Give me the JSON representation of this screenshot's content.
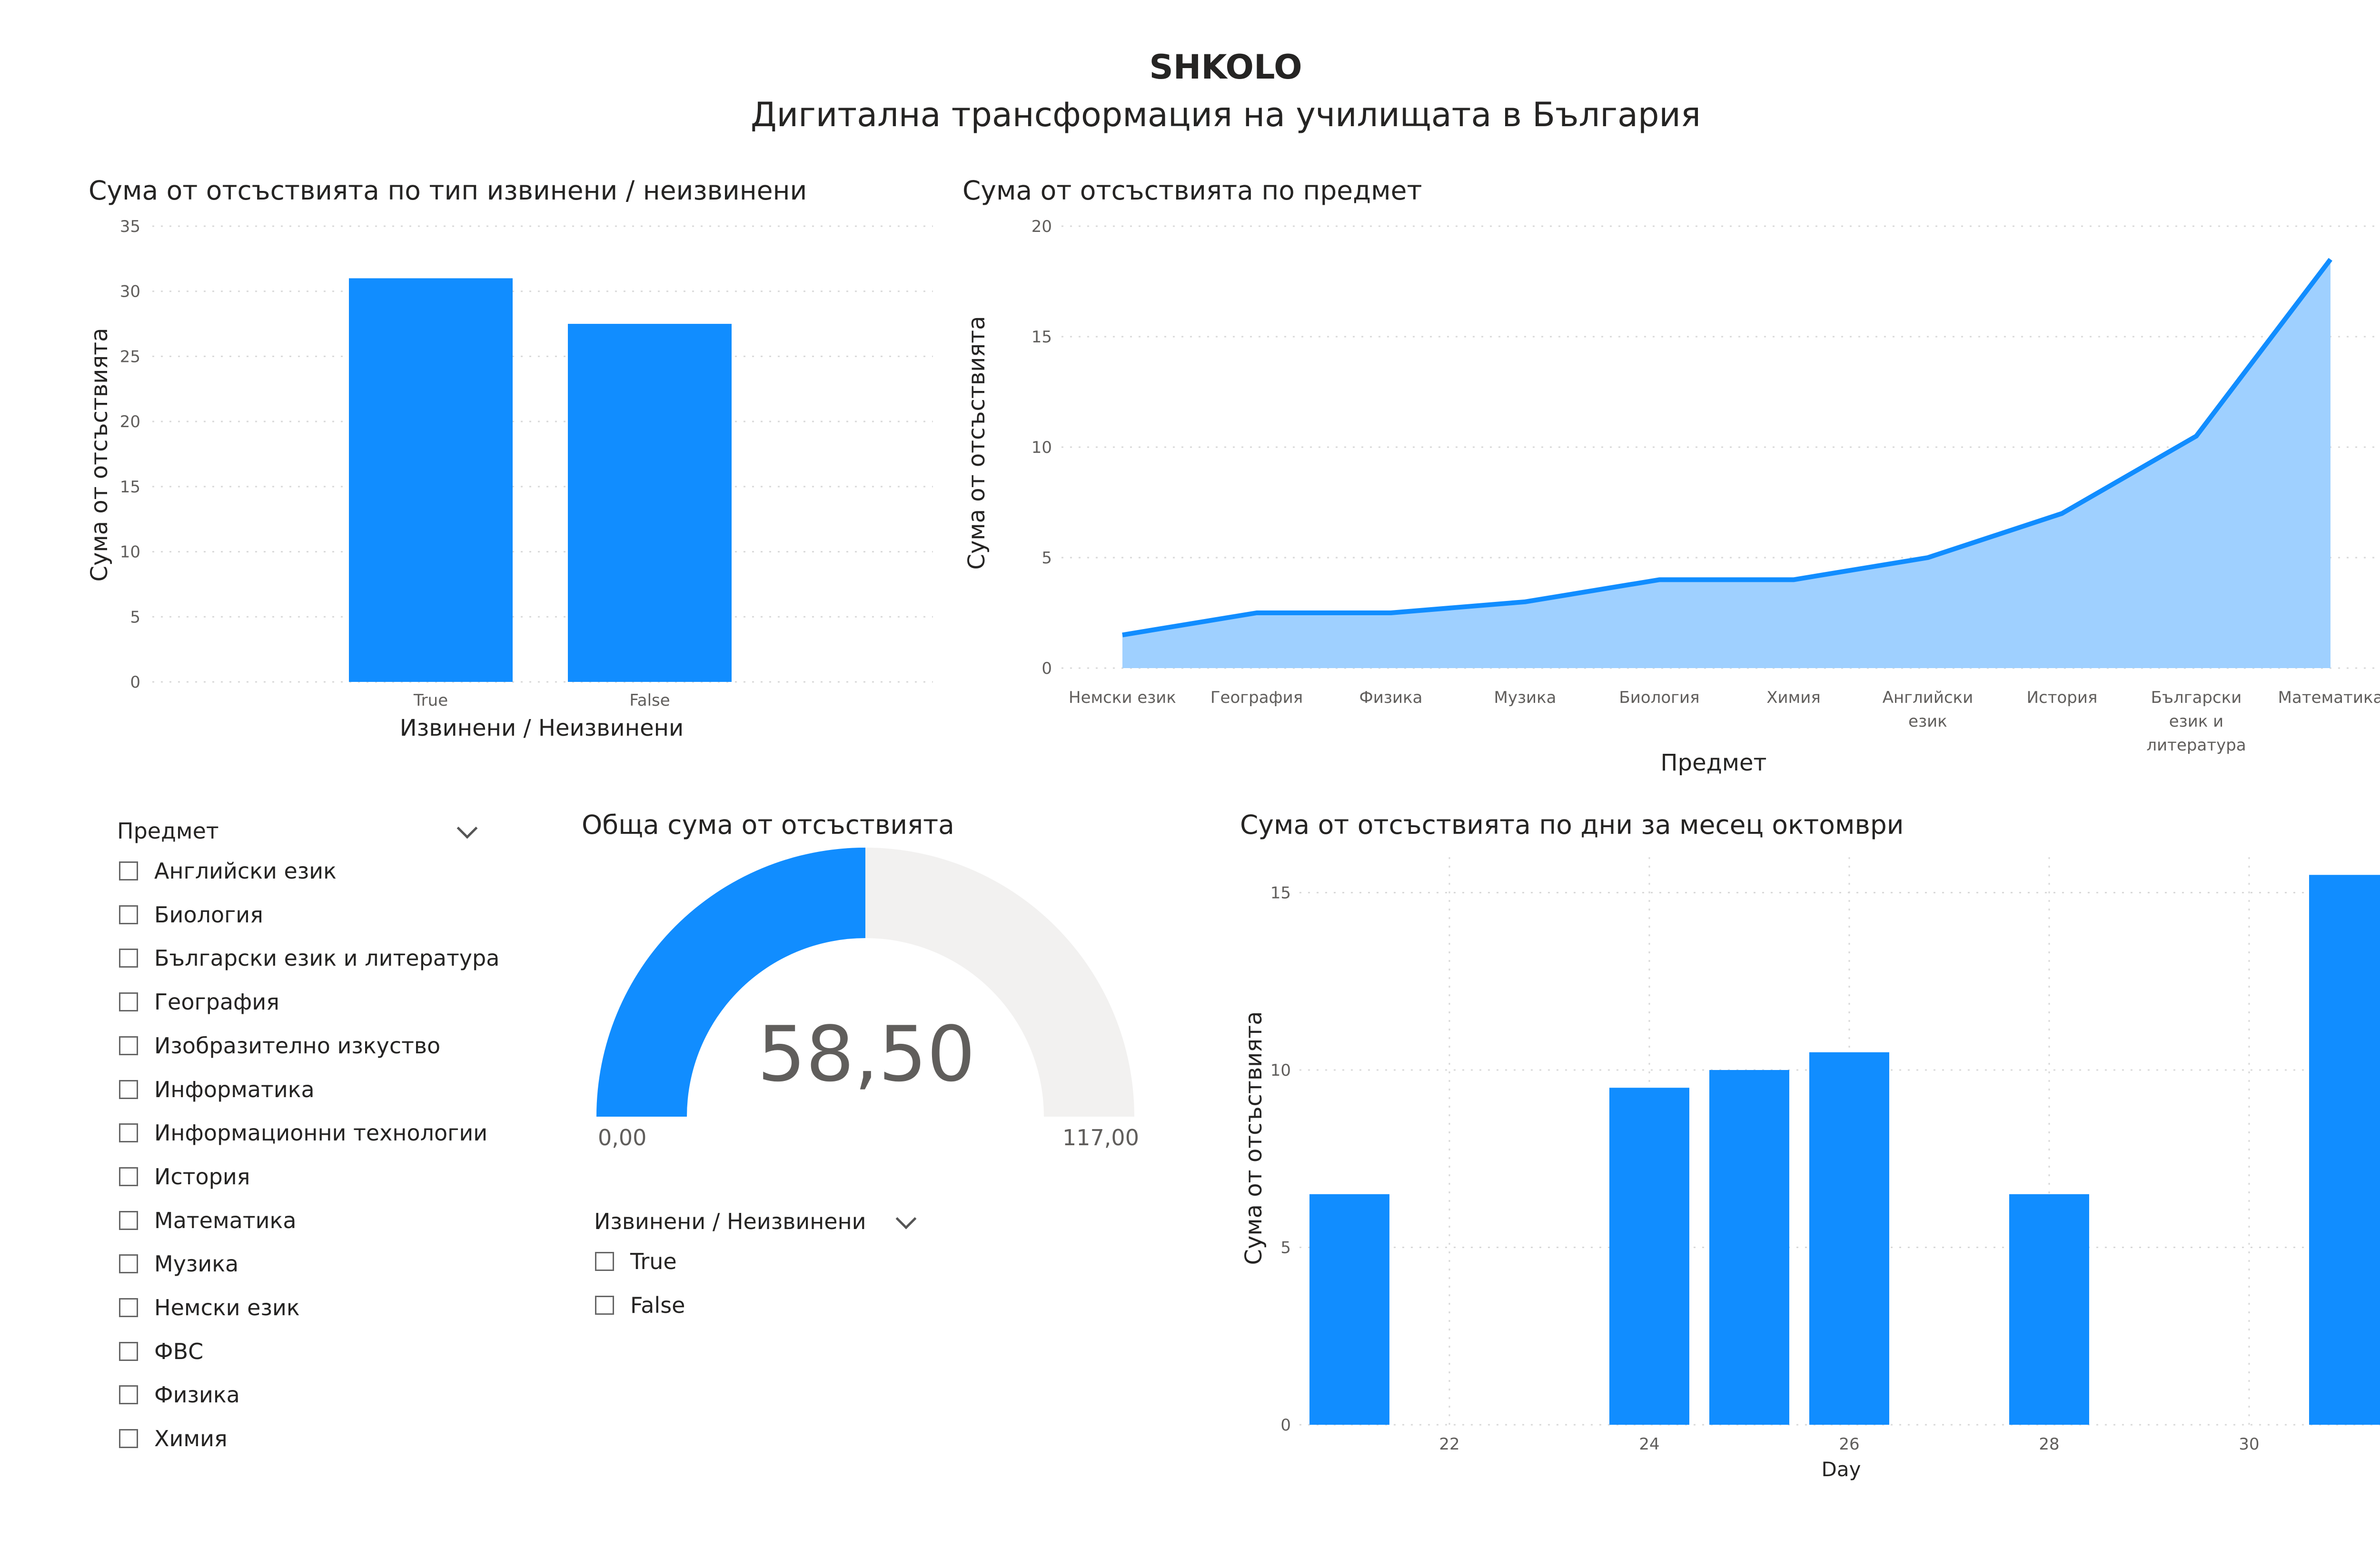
{
  "header": {
    "title": "SHKOLO",
    "subtitle": "Дигитална трансформация на училищата в България"
  },
  "colors": {
    "accent": "#118DFF",
    "area_fill": "#9FD0FF",
    "gauge_track": "#F2F1F0",
    "grid": "#D9D9D9"
  },
  "charts": {
    "excused": {
      "title": "Сума от отсъствията по тип извинени / неизвинени",
      "xlabel": "Извинени / Неизвинени",
      "ylabel": "Сума от отсъствията",
      "yticks": [
        "0",
        "5",
        "10",
        "15",
        "20",
        "25",
        "30",
        "35"
      ]
    },
    "subject": {
      "title": "Сума от отсъствията по предмет",
      "xlabel": "Предмет",
      "ylabel": "Сума от отсъствията",
      "yticks": [
        "0",
        "5",
        "10",
        "15",
        "20"
      ]
    },
    "days": {
      "title": "Сума от отсъствията по дни за месец октомври",
      "xlabel": "Day",
      "ylabel": "Сума от отсъствията",
      "yticks": [
        "0",
        "5",
        "10",
        "15"
      ],
      "xticks": [
        "22",
        "24",
        "26",
        "28",
        "30"
      ]
    }
  },
  "chart_data": [
    {
      "type": "bar",
      "title": "Сума от отсъствията по тип извинени / неизвинени",
      "xlabel": "Извинени / Неизвинени",
      "ylabel": "Сума от отсъствията",
      "categories": [
        "True",
        "False"
      ],
      "values": [
        31,
        27.5
      ],
      "ylim": [
        0,
        35
      ],
      "grid": true
    },
    {
      "type": "area",
      "title": "Сума от отсъствията по предмет",
      "xlabel": "Предмет",
      "ylabel": "Сума от отсъствията",
      "categories": [
        "Немски език",
        "География",
        "Физика",
        "Музика",
        "Биология",
        "Химия",
        "Английски език",
        "История",
        "Български език и литература",
        "Математика"
      ],
      "values": [
        1.5,
        2.5,
        2.5,
        3,
        4,
        4,
        5,
        7,
        10.5,
        18.5
      ],
      "ylim": [
        0,
        20
      ],
      "grid": true
    },
    {
      "type": "bar",
      "title": "Сума от отсъствията по дни за месец октомври",
      "xlabel": "Day",
      "ylabel": "Сума от отсъствията",
      "x": [
        21,
        24,
        25,
        26,
        28,
        31
      ],
      "values": [
        6.5,
        9.5,
        10,
        10.5,
        6.5,
        15.5
      ],
      "xlim": [
        20.5,
        31.5
      ],
      "ylim": [
        0,
        16
      ],
      "grid": true
    }
  ],
  "gauge": {
    "title": "Обща сума от отсъствията",
    "value": 58.5,
    "min": 0,
    "max": 117,
    "value_label": "58,50",
    "min_label": "0,00",
    "max_label": "117,00"
  },
  "subject_slicer": {
    "header": "Предмет",
    "icon": "chevron-down-icon",
    "items": [
      "Английски език",
      "Биология",
      "Български език и литература",
      "География",
      "Изобразително изкуство",
      "Информатика",
      "Информационни технологии",
      "История",
      "Математика",
      "Музика",
      "Немски език",
      "ФВС",
      "Физика",
      "Химия"
    ]
  },
  "excused_slicer": {
    "header": "Извинени / Неизвинени",
    "icon": "chevron-down-icon",
    "items": [
      "True",
      "False"
    ]
  }
}
